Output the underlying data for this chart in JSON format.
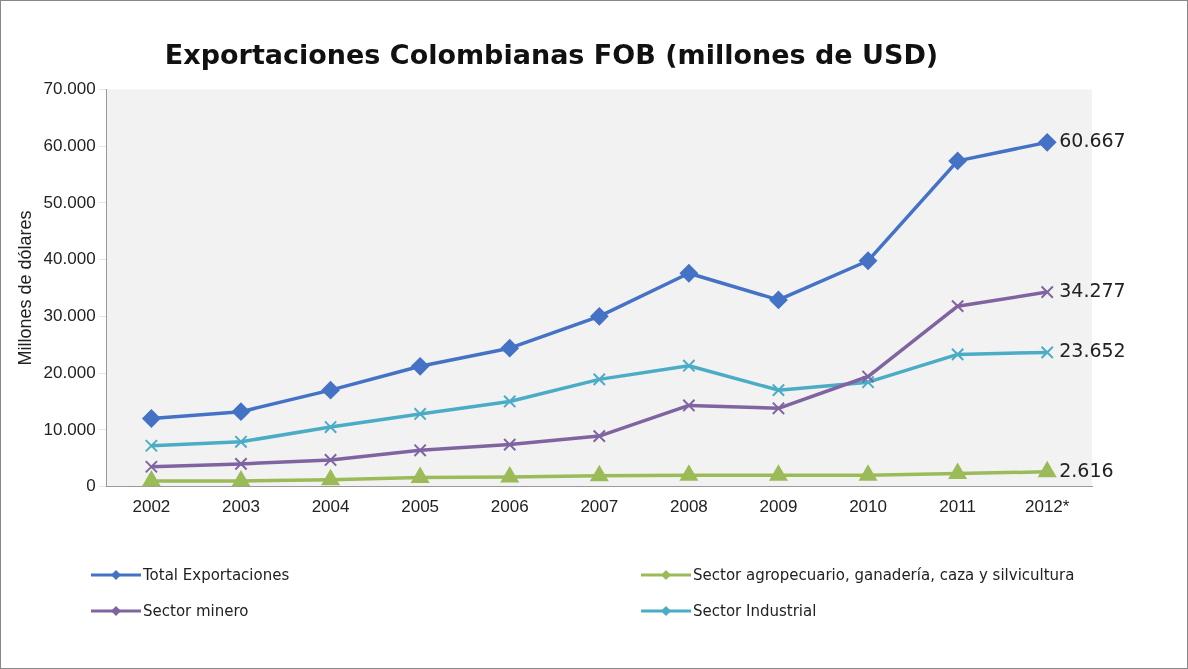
{
  "chart_data": {
    "type": "line",
    "title": "Exportaciones Colombianas FOB (millones de USD)",
    "ylabel": "Millones de dólares",
    "categories": [
      "2002",
      "2003",
      "2004",
      "2005",
      "2006",
      "2007",
      "2008",
      "2009",
      "2010",
      "2011",
      "2012*"
    ],
    "series": [
      {
        "name": "Total Exportaciones",
        "color": "#4472c4",
        "marker": "diamond",
        "values": [
          12000,
          13200,
          17000,
          21200,
          24400,
          30000,
          37600,
          32900,
          39800,
          57400,
          60667
        ],
        "value_labels": [
          null,
          null,
          null,
          null,
          null,
          null,
          null,
          null,
          null,
          null,
          "60.667"
        ]
      },
      {
        "name": "Sector agropecuario, ganadería, caza y silvicultura",
        "color": "#9bbb59",
        "marker": "triangle",
        "values": [
          1000,
          1000,
          1200,
          1600,
          1700,
          1900,
          2000,
          2000,
          2000,
          2300,
          2616
        ],
        "value_labels": [
          null,
          null,
          null,
          null,
          null,
          null,
          null,
          null,
          null,
          null,
          "2.616"
        ]
      },
      {
        "name": "Sector minero",
        "color": "#8064a2",
        "marker": "cross",
        "values": [
          3500,
          4000,
          4700,
          6400,
          7400,
          8900,
          14300,
          13800,
          19400,
          31800,
          34277
        ],
        "value_labels": [
          null,
          null,
          null,
          null,
          null,
          null,
          null,
          null,
          null,
          null,
          "34.277"
        ]
      },
      {
        "name": "Sector Industrial",
        "color": "#4bacc6",
        "marker": "cross",
        "values": [
          7200,
          7900,
          10500,
          12800,
          15000,
          18900,
          21300,
          17000,
          18400,
          23300,
          23652
        ],
        "value_labels": [
          null,
          null,
          null,
          null,
          null,
          null,
          null,
          null,
          null,
          null,
          "23.652"
        ]
      }
    ],
    "ylim": [
      0,
      70000
    ],
    "yticks": [
      {
        "value": 0,
        "label": "0"
      },
      {
        "value": 10000,
        "label": "10.000"
      },
      {
        "value": 20000,
        "label": "20.000"
      },
      {
        "value": 30000,
        "label": "30.000"
      },
      {
        "value": 40000,
        "label": "40.000"
      },
      {
        "value": 50000,
        "label": "50.000"
      },
      {
        "value": 60000,
        "label": "60.000"
      },
      {
        "value": 70000,
        "label": "70.000"
      }
    ],
    "grid": false,
    "legend": "bottom",
    "line_style": "solid"
  }
}
